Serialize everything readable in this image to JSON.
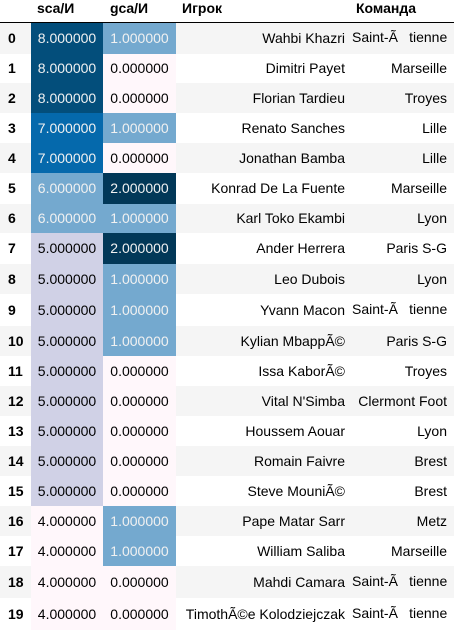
{
  "headers": {
    "index": "",
    "sca": "sca/И",
    "gca": "gca/И",
    "player": "Игрок",
    "team": "Команда"
  },
  "colors": {
    "level_8": "#034e7b",
    "level_7": "#0569ac",
    "level_6": "#74a9cf",
    "level_5": "#d0d1e6",
    "level_4": "#fff7fb",
    "gca_2": "#023858",
    "gca_1": "#74a9cf",
    "gca_0": "#fff7fb",
    "text_light": "#f1f1f1",
    "text_dark": "#000000"
  },
  "rows": [
    {
      "index": "0",
      "sca": "8.000000",
      "gca": "1.000000",
      "player": "Wahbi Khazri",
      "team": "Saint-Ãtienne"
    },
    {
      "index": "1",
      "sca": "8.000000",
      "gca": "0.000000",
      "player": "Dimitri Payet",
      "team": "Marseille"
    },
    {
      "index": "2",
      "sca": "8.000000",
      "gca": "0.000000",
      "player": "Florian Tardieu",
      "team": "Troyes"
    },
    {
      "index": "3",
      "sca": "7.000000",
      "gca": "1.000000",
      "player": "Renato Sanches",
      "team": "Lille"
    },
    {
      "index": "4",
      "sca": "7.000000",
      "gca": "0.000000",
      "player": "Jonathan Bamba",
      "team": "Lille"
    },
    {
      "index": "5",
      "sca": "6.000000",
      "gca": "2.000000",
      "player": "Konrad De La Fuente",
      "team": "Marseille"
    },
    {
      "index": "6",
      "sca": "6.000000",
      "gca": "1.000000",
      "player": "Karl Toko Ekambi",
      "team": "Lyon"
    },
    {
      "index": "7",
      "sca": "5.000000",
      "gca": "2.000000",
      "player": "Ander Herrera",
      "team": "Paris S-G"
    },
    {
      "index": "8",
      "sca": "5.000000",
      "gca": "1.000000",
      "player": "Leo Dubois",
      "team": "Lyon"
    },
    {
      "index": "9",
      "sca": "5.000000",
      "gca": "1.000000",
      "player": "Yvann Macon",
      "team": "Saint-Ãtienne"
    },
    {
      "index": "10",
      "sca": "5.000000",
      "gca": "1.000000",
      "player": "Kylian MbappÃ©",
      "team": "Paris S-G"
    },
    {
      "index": "11",
      "sca": "5.000000",
      "gca": "0.000000",
      "player": "Issa KaborÃ©",
      "team": "Troyes"
    },
    {
      "index": "12",
      "sca": "5.000000",
      "gca": "0.000000",
      "player": "Vital N'Simba",
      "team": "Clermont Foot"
    },
    {
      "index": "13",
      "sca": "5.000000",
      "gca": "0.000000",
      "player": "Houssem Aouar",
      "team": "Lyon"
    },
    {
      "index": "14",
      "sca": "5.000000",
      "gca": "0.000000",
      "player": "Romain Faivre",
      "team": "Brest"
    },
    {
      "index": "15",
      "sca": "5.000000",
      "gca": "0.000000",
      "player": "Steve MouniÃ©",
      "team": "Brest"
    },
    {
      "index": "16",
      "sca": "4.000000",
      "gca": "1.000000",
      "player": "Pape Matar Sarr",
      "team": "Metz"
    },
    {
      "index": "17",
      "sca": "4.000000",
      "gca": "1.000000",
      "player": "William Saliba",
      "team": "Marseille"
    },
    {
      "index": "18",
      "sca": "4.000000",
      "gca": "0.000000",
      "player": "Mahdi Camara",
      "team": "Saint-Ãtienne"
    },
    {
      "index": "19",
      "sca": "4.000000",
      "gca": "0.000000",
      "player": "TimothÃ©e Kolodziejczak",
      "team": "Saint-Ãtienne"
    }
  ]
}
